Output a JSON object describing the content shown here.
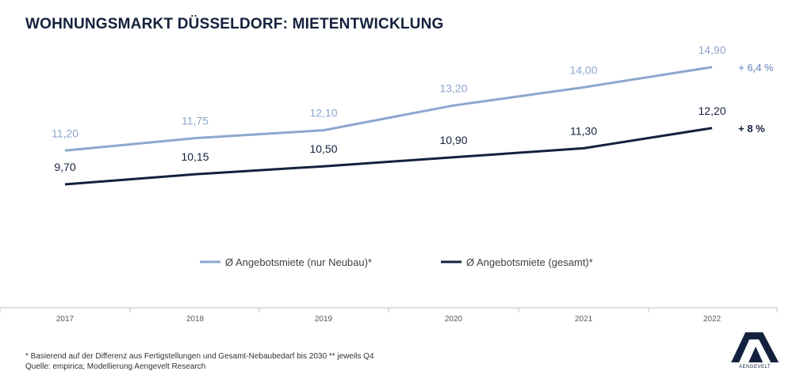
{
  "title": "WOHNUNGSMARKT DÜSSELDORF: MIETENTWICKLUNG",
  "chart_data": {
    "type": "line",
    "x": [
      "2017",
      "2018",
      "2019",
      "2020",
      "2021",
      "2022"
    ],
    "series": [
      {
        "name": "Ø Angebotsmiete (nur Neubau)*",
        "values": [
          11.2,
          11.75,
          12.1,
          13.2,
          14.0,
          14.9
        ],
        "labels": [
          "11,20",
          "11,75",
          "12,10",
          "13,20",
          "14,00",
          "14,90"
        ],
        "change": "+ 6,4 %",
        "color": "#8ea6cf"
      },
      {
        "name": "Ø Angebotsmiete (gesamt)*",
        "values": [
          9.7,
          10.15,
          10.5,
          10.9,
          11.3,
          12.2
        ],
        "labels": [
          "9,70",
          "10,15",
          "10,50",
          "10,90",
          "11,30",
          "12,20"
        ],
        "change": "+ 8 %",
        "color": "#14213d"
      }
    ],
    "legend": "bottom",
    "grid": false
  },
  "footnotes": [
    "* Basierend auf der Differenz aus Fertigstellungen und Gesamt-Nebaubedarf bis 2030  ** jeweils Q4",
    "Quelle: empirica; Modellierung Aengevelt Research"
  ],
  "logo": {
    "text": "AENGEVELT"
  },
  "colors": {
    "title": "#14213d",
    "axis": "#bfbfbf",
    "tick": "#595959"
  }
}
